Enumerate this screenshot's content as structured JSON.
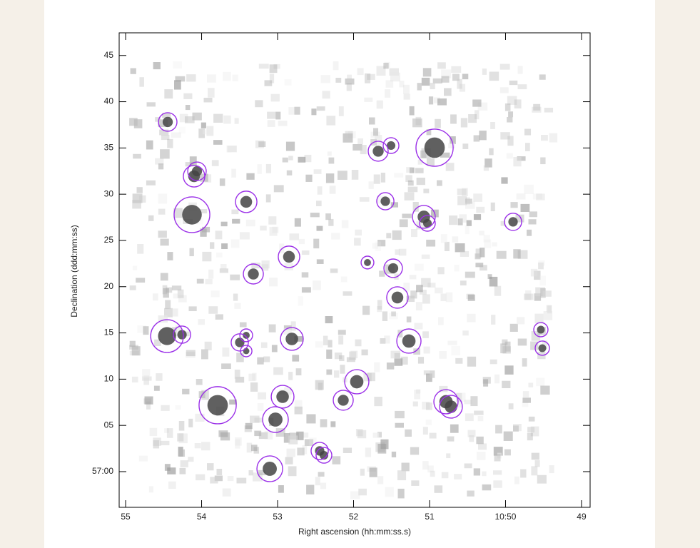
{
  "chart_data": {
    "type": "scatter",
    "xlabel": "Right ascension (hh:mm:ss.s)",
    "ylabel": "Declination (ddd:mm:ss)",
    "xlim": [
      55.085,
      48.887
    ],
    "ylim": [
      -3.86,
      47.45
    ],
    "xticks": [
      55,
      54,
      53,
      52,
      51,
      {
        "value": 50,
        "label": "10:50"
      },
      49
    ],
    "yticks": [
      45,
      40,
      35,
      30,
      25,
      20,
      15,
      10,
      {
        "value": 5,
        "label": "05"
      },
      {
        "value": 0,
        "label": "57:00"
      }
    ],
    "color": "#9b30e8",
    "x": [
      54.446,
      54.061,
      54.099,
      54.127,
      53.413,
      52.85,
      53.319,
      51.676,
      51.507,
      50.934,
      51.582,
      51.075,
      51.028,
      49.901,
      51.817,
      51.479,
      51.423,
      54.455,
      54.258,
      53.498,
      53.413,
      53.413,
      52.812,
      51.272,
      49.535,
      49.516,
      51.958,
      52.934,
      53.789,
      53.028,
      52.136,
      50.784,
      50.718,
      52.446,
      52.39,
      53.103
    ],
    "y": [
      37.81,
      32.48,
      31.94,
      27.78,
      29.17,
      23.23,
      21.37,
      34.65,
      35.26,
      35.03,
      29.24,
      27.55,
      26.85,
      27.01,
      22.61,
      21.99,
      18.83,
      14.66,
      14.81,
      13.97,
      14.74,
      13.04,
      14.35,
      14.12,
      15.35,
      13.35,
      9.72,
      8.1,
      7.18,
      5.63,
      7.72,
      7.56,
      7.02,
      2.24,
      1.77,
      0.31
    ],
    "sizes": [
      1.0,
      1.0,
      1.16,
      1.93,
      1.16,
      1.16,
      1.08,
      1.08,
      0.85,
      2.01,
      0.93,
      1.23,
      0.85,
      0.93,
      0.69,
      1.0,
      1.16,
      1.77,
      0.93,
      0.93,
      0.69,
      0.62,
      1.23,
      1.31,
      0.77,
      0.77,
      1.31,
      1.23,
      2.01,
      1.39,
      1.08,
      1.31,
      1.23,
      0.93,
      0.85,
      1.39
    ]
  }
}
